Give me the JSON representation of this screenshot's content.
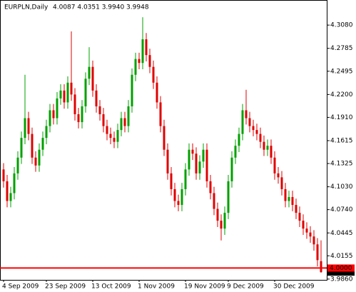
{
  "chart_data": {
    "type": "candlestick",
    "title": "EURPLN,Daily",
    "ohlc_header": "4.0087 4.0351 3.9940 3.9948",
    "categories": [
      "4 Sep 2009",
      null,
      null,
      null,
      null,
      null,
      null,
      null,
      null,
      null,
      null,
      null,
      "23 Sep 2009",
      null,
      null,
      null,
      null,
      null,
      null,
      null,
      null,
      null,
      null,
      null,
      null,
      "13 Oct 2009",
      null,
      null,
      null,
      null,
      null,
      null,
      null,
      null,
      null,
      null,
      null,
      null,
      "1 Nov 2009",
      null,
      null,
      null,
      null,
      null,
      null,
      null,
      null,
      null,
      null,
      null,
      null,
      "19 Nov 2009",
      null,
      null,
      null,
      null,
      null,
      null,
      null,
      null,
      null,
      null,
      null,
      "9 Dec 2009",
      null,
      null,
      null,
      null,
      null,
      null,
      null,
      null,
      null,
      null,
      null,
      null,
      "30 Dec 2009",
      null,
      null,
      null,
      null,
      null,
      null,
      null,
      null,
      null,
      null,
      null,
      null,
      null
    ],
    "open": [
      4.125,
      4.11,
      4.085,
      4.095,
      4.12,
      4.14,
      4.165,
      4.19,
      4.17,
      4.14,
      4.13,
      4.15,
      4.165,
      4.18,
      4.2,
      4.19,
      4.215,
      4.225,
      4.21,
      4.235,
      4.22,
      4.195,
      4.185,
      4.205,
      4.24,
      4.255,
      4.225,
      4.205,
      4.195,
      4.18,
      4.17,
      4.165,
      4.16,
      4.175,
      4.19,
      4.18,
      4.205,
      4.245,
      4.265,
      4.26,
      4.29,
      4.27,
      4.255,
      4.235,
      4.21,
      4.18,
      4.15,
      4.12,
      4.1,
      4.085,
      4.08,
      4.1,
      4.125,
      4.15,
      4.145,
      4.12,
      4.135,
      4.15,
      4.11,
      4.095,
      4.075,
      4.06,
      4.05,
      4.07,
      4.11,
      4.14,
      4.155,
      4.17,
      4.2,
      4.19,
      4.18,
      4.175,
      4.17,
      4.16,
      4.15,
      4.155,
      4.14,
      4.12,
      4.115,
      4.1,
      4.085,
      4.09,
      4.08,
      4.07,
      4.06,
      4.05,
      4.045,
      4.04,
      4.03,
      4.0087
    ],
    "high": [
      4.133,
      4.118,
      4.103,
      4.128,
      4.148,
      4.173,
      4.245,
      4.198,
      4.178,
      4.148,
      4.158,
      4.173,
      4.188,
      4.208,
      4.208,
      4.223,
      4.233,
      4.233,
      4.243,
      4.3,
      4.228,
      4.203,
      4.213,
      4.248,
      4.28,
      4.263,
      4.233,
      4.213,
      4.203,
      4.188,
      4.178,
      4.173,
      4.183,
      4.198,
      4.198,
      4.213,
      4.253,
      4.273,
      4.273,
      4.318,
      4.298,
      4.278,
      4.263,
      4.243,
      4.218,
      4.188,
      4.158,
      4.128,
      4.108,
      4.093,
      4.108,
      4.133,
      4.158,
      4.158,
      4.153,
      4.143,
      4.158,
      4.158,
      4.118,
      4.103,
      4.083,
      4.068,
      4.078,
      4.118,
      4.148,
      4.163,
      4.178,
      4.208,
      4.226,
      4.198,
      4.188,
      4.183,
      4.178,
      4.168,
      4.163,
      4.163,
      4.148,
      4.128,
      4.123,
      4.108,
      4.098,
      4.098,
      4.088,
      4.078,
      4.068,
      4.058,
      4.053,
      4.048,
      4.038,
      4.0351
    ],
    "low": [
      4.102,
      4.077,
      4.077,
      4.087,
      4.112,
      4.132,
      4.157,
      4.162,
      4.132,
      4.122,
      4.122,
      4.142,
      4.157,
      4.172,
      4.182,
      4.182,
      4.207,
      4.202,
      4.202,
      4.212,
      4.187,
      4.177,
      4.177,
      4.197,
      4.232,
      4.217,
      4.197,
      4.187,
      4.172,
      4.162,
      4.157,
      4.152,
      4.152,
      4.167,
      4.172,
      4.172,
      4.197,
      4.237,
      4.252,
      4.252,
      4.262,
      4.247,
      4.227,
      4.202,
      4.172,
      4.142,
      4.112,
      4.092,
      4.077,
      4.072,
      4.072,
      4.092,
      4.117,
      4.137,
      4.112,
      4.112,
      4.127,
      4.102,
      4.087,
      4.067,
      4.052,
      4.035,
      4.042,
      4.062,
      4.102,
      4.132,
      4.147,
      4.162,
      4.182,
      4.172,
      4.167,
      4.162,
      4.152,
      4.142,
      4.142,
      4.132,
      4.112,
      4.107,
      4.092,
      4.077,
      4.077,
      4.072,
      4.062,
      4.052,
      4.042,
      4.037,
      4.032,
      4.022,
      4.002,
      3.994
    ],
    "close": [
      4.11,
      4.085,
      4.095,
      4.12,
      4.14,
      4.165,
      4.19,
      4.17,
      4.14,
      4.13,
      4.15,
      4.165,
      4.18,
      4.2,
      4.19,
      4.215,
      4.225,
      4.21,
      4.235,
      4.22,
      4.195,
      4.185,
      4.205,
      4.24,
      4.255,
      4.225,
      4.205,
      4.195,
      4.18,
      4.17,
      4.165,
      4.16,
      4.175,
      4.19,
      4.18,
      4.205,
      4.245,
      4.265,
      4.26,
      4.29,
      4.27,
      4.255,
      4.235,
      4.21,
      4.18,
      4.15,
      4.12,
      4.1,
      4.085,
      4.08,
      4.1,
      4.125,
      4.15,
      4.145,
      4.12,
      4.135,
      4.15,
      4.11,
      4.095,
      4.075,
      4.06,
      4.05,
      4.07,
      4.11,
      4.14,
      4.155,
      4.17,
      4.2,
      4.19,
      4.18,
      4.175,
      4.17,
      4.16,
      4.15,
      4.155,
      4.14,
      4.12,
      4.115,
      4.1,
      4.085,
      4.09,
      4.08,
      4.07,
      4.06,
      4.05,
      4.045,
      4.04,
      4.03,
      4.01,
      3.9948
    ],
    "up_color": "#00a000",
    "down_color": "#e00000",
    "ylim": [
      3.985,
      4.338
    ],
    "yticks": [
      {
        "value": 4.308,
        "label": "4.3080"
      },
      {
        "value": 4.2785,
        "label": "4.2785"
      },
      4.2495,
      {
        "value": 4.22,
        "label": "4.2200"
      },
      {
        "value": 4.191,
        "label": "4.1910"
      },
      4.1615,
      4.1325,
      {
        "value": 4.103,
        "label": "4.1030"
      },
      {
        "value": 4.074,
        "label": "4.0740"
      },
      4.0445,
      4.0155,
      {
        "value": 3.986,
        "label": "3.9860"
      }
    ],
    "hline": {
      "value": 4,
      "label": "4.0000",
      "color": "#ff0000"
    },
    "last_price": 3.9948
  }
}
